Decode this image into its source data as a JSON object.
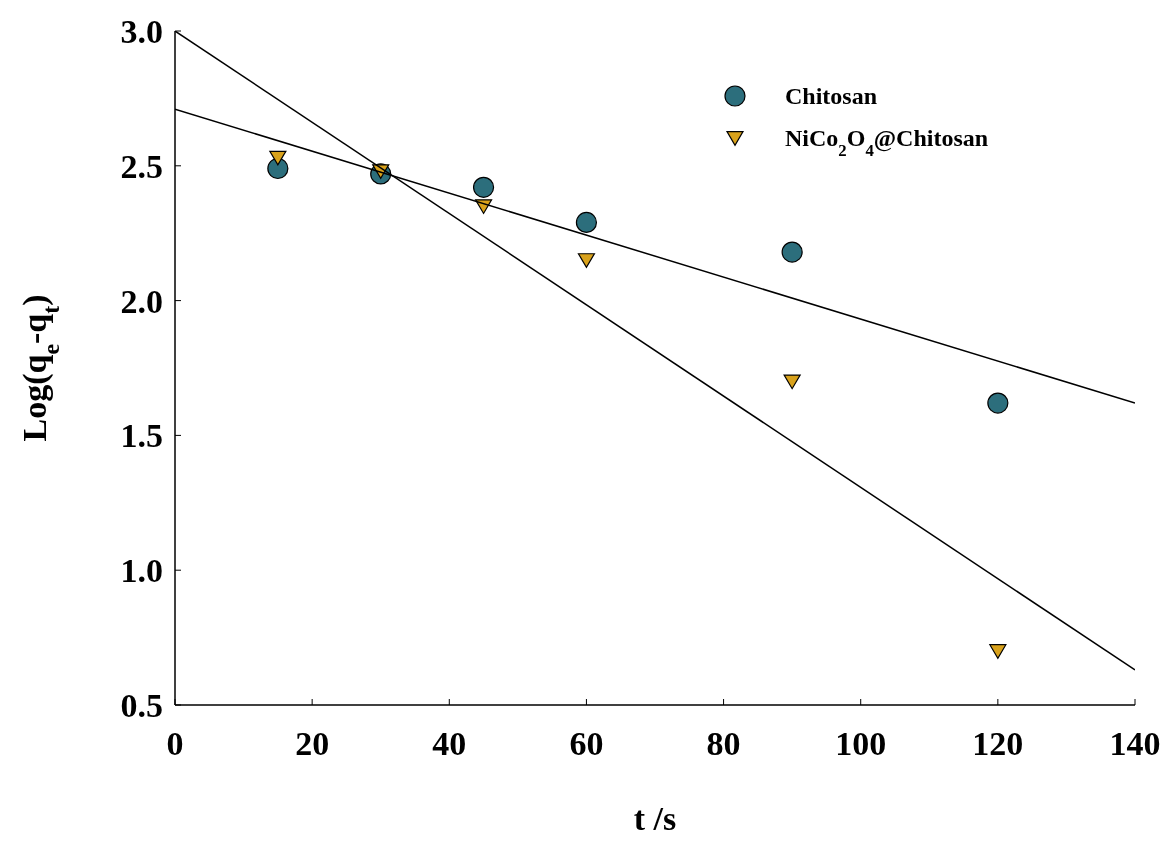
{
  "chart_data": {
    "type": "scatter",
    "xlabel": "t /s",
    "ylabel": "Log(q$_{e}$-q$_{t}$)",
    "xlim": [
      0,
      140
    ],
    "xticks": [
      0,
      20,
      40,
      60,
      80,
      100,
      120,
      140
    ],
    "ylim": [
      0.5,
      3.0
    ],
    "yticks": [
      {
        "value": 0.5,
        "label": "0.5"
      },
      {
        "value": 1,
        "label": "1.0"
      },
      {
        "value": 1.5,
        "label": "1.5"
      },
      {
        "value": 2,
        "label": "2.0"
      },
      {
        "value": 2.5,
        "label": "2.5"
      },
      {
        "value": 3,
        "label": "3.0"
      }
    ],
    "legend": "top right",
    "grid": false,
    "series": [
      {
        "name": "Chitosan",
        "marker": "circle",
        "color": "#2c6e7c",
        "x": [
          15,
          30,
          45,
          60,
          90,
          120
        ],
        "values": [
          2.49,
          2.47,
          2.42,
          2.29,
          2.18,
          1.62
        ]
      },
      {
        "name": "NiCo$_{2}$O$_{4}$@Chitosan",
        "marker": "triangle",
        "color": "#d9a21b",
        "x": [
          15,
          30,
          45,
          60,
          90,
          120
        ],
        "values": [
          2.53,
          2.48,
          2.35,
          2.15,
          1.7,
          0.7
        ]
      },
      {
        "type": "line",
        "color": "#000000",
        "line_style": "solid",
        "x": [
          0,
          140
        ],
        "values": [
          2.71,
          1.62
        ]
      },
      {
        "type": "line",
        "color": "#000000",
        "line_style": "solid",
        "x": [
          0,
          140
        ],
        "values": [
          3.0,
          0.63
        ]
      }
    ]
  }
}
